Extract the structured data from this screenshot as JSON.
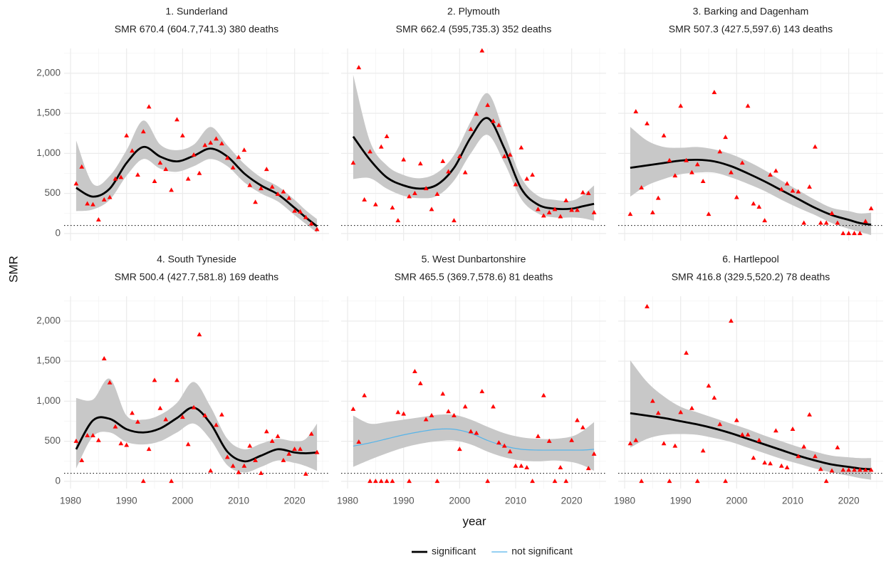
{
  "axes": {
    "x_label": "year",
    "y_label": "SMR",
    "xlim": [
      1978.85,
      2026.15
    ],
    "ylim": [
      -90,
      2310
    ],
    "xticks": [
      1980,
      1990,
      2000,
      2010,
      2020
    ],
    "yticks": [
      0,
      500,
      {
        "value": 1000,
        "label": "1,000"
      },
      {
        "value": 1500,
        "label": "1,500"
      },
      {
        "value": 2000,
        "label": "2,000"
      }
    ],
    "grid": true,
    "minor_grid": true,
    "reference_line": 100,
    "marker_color": "#ff0000",
    "band_color": "#c8c8c8",
    "legend_position": "bottom"
  },
  "chart_data": [
    {
      "type": "scatter",
      "title": "1. Sunderland",
      "subtitle": "SMR 670.4 (604.7,741.3) 380 deaths",
      "x": [
        1981,
        1982,
        1983,
        1984,
        1985,
        1986,
        1987,
        1988,
        1989,
        1990,
        1991,
        1992,
        1993,
        1994,
        1995,
        1996,
        1997,
        1998,
        1999,
        2000,
        2001,
        2002,
        2003,
        2004,
        2005,
        2006,
        2007,
        2008,
        2009,
        2010,
        2011,
        2012,
        2013,
        2014,
        2015,
        2016,
        2017,
        2018,
        2019,
        2020,
        2021,
        2022,
        2023,
        2024
      ],
      "values": [
        620,
        830,
        370,
        360,
        170,
        420,
        450,
        680,
        700,
        1220,
        1030,
        730,
        1270,
        1580,
        650,
        880,
        800,
        540,
        1420,
        1220,
        680,
        980,
        750,
        1100,
        1130,
        1180,
        1120,
        940,
        820,
        950,
        1040,
        600,
        390,
        560,
        800,
        580,
        490,
        520,
        440,
        280,
        270,
        200,
        120,
        50
      ],
      "fit": {
        "name": "significant",
        "color": "#000000",
        "bold": true,
        "x": [
          1981,
          1984,
          1987,
          1990,
          1993,
          1996,
          1999,
          2002,
          2005,
          2008,
          2011,
          2014,
          2017,
          2020,
          2022,
          2024
        ],
        "values": [
          570,
          460,
          560,
          880,
          1080,
          960,
          900,
          970,
          1060,
          960,
          750,
          600,
          490,
          320,
          200,
          90
        ],
        "lower": [
          280,
          300,
          420,
          720,
          930,
          810,
          770,
          840,
          930,
          840,
          640,
          500,
          400,
          230,
          120,
          10
        ],
        "upper": [
          1160,
          620,
          720,
          1040,
          1410,
          1110,
          1040,
          1110,
          1330,
          1100,
          870,
          700,
          590,
          420,
          290,
          180
        ]
      }
    },
    {
      "type": "scatter",
      "title": "2. Plymouth",
      "subtitle": "SMR 662.4 (595,735.3) 352 deaths",
      "x": [
        1981,
        1982,
        1983,
        1984,
        1985,
        1986,
        1987,
        1988,
        1989,
        1990,
        1991,
        1992,
        1993,
        1994,
        1995,
        1996,
        1997,
        1998,
        1999,
        2000,
        2001,
        2002,
        2003,
        2004,
        2005,
        2006,
        2007,
        2008,
        2009,
        2010,
        2011,
        2012,
        2013,
        2014,
        2015,
        2016,
        2017,
        2018,
        2019,
        2020,
        2021,
        2022,
        2023,
        2024
      ],
      "values": [
        880,
        2070,
        420,
        1020,
        360,
        1080,
        1210,
        320,
        160,
        920,
        460,
        500,
        870,
        560,
        300,
        490,
        900,
        770,
        160,
        960,
        760,
        1300,
        1490,
        2280,
        1600,
        1400,
        1350,
        960,
        980,
        610,
        1070,
        680,
        730,
        300,
        220,
        260,
        300,
        210,
        410,
        290,
        290,
        510,
        500,
        260
      ],
      "fit": {
        "name": "significant",
        "color": "#000000",
        "bold": true,
        "x": [
          1981,
          1984,
          1987,
          1990,
          1993,
          1996,
          1999,
          2002,
          2005,
          2008,
          2011,
          2014,
          2017,
          2020,
          2022,
          2024
        ],
        "values": [
          1210,
          920,
          700,
          600,
          560,
          610,
          820,
          1200,
          1440,
          1060,
          560,
          360,
          310,
          310,
          340,
          370
        ],
        "lower": [
          680,
          690,
          560,
          470,
          440,
          470,
          660,
          1000,
          1230,
          880,
          430,
          250,
          200,
          200,
          190,
          160
        ],
        "upper": [
          1980,
          1150,
          850,
          730,
          690,
          760,
          980,
          1400,
          1750,
          1250,
          700,
          470,
          420,
          410,
          480,
          600
        ]
      }
    },
    {
      "type": "scatter",
      "title": "3. Barking and Dagenham",
      "subtitle": "SMR 507.3 (427.5,597.6) 143 deaths",
      "x": [
        1981,
        1982,
        1983,
        1984,
        1985,
        1986,
        1987,
        1988,
        1989,
        1990,
        1991,
        1992,
        1993,
        1994,
        1995,
        1996,
        1997,
        1998,
        1999,
        2000,
        2001,
        2002,
        2003,
        2004,
        2005,
        2006,
        2007,
        2008,
        2009,
        2010,
        2011,
        2012,
        2013,
        2014,
        2015,
        2016,
        2017,
        2018,
        2019,
        2020,
        2021,
        2022,
        2023,
        2024
      ],
      "values": [
        240,
        1520,
        570,
        1370,
        260,
        440,
        1220,
        910,
        720,
        1590,
        910,
        760,
        860,
        650,
        240,
        1760,
        1020,
        1200,
        760,
        450,
        880,
        1590,
        370,
        330,
        160,
        730,
        780,
        550,
        620,
        530,
        520,
        130,
        580,
        1080,
        130,
        130,
        250,
        130,
        0,
        0,
        0,
        0,
        150,
        310
      ],
      "fit": {
        "name": "significant",
        "color": "#000000",
        "bold": true,
        "x": [
          1981,
          1984,
          1987,
          1990,
          1993,
          1996,
          1999,
          2002,
          2005,
          2008,
          2011,
          2014,
          2017,
          2020,
          2022,
          2024
        ],
        "values": [
          820,
          850,
          880,
          910,
          920,
          900,
          840,
          750,
          650,
          540,
          430,
          320,
          230,
          170,
          130,
          110
        ],
        "lower": [
          460,
          600,
          680,
          740,
          760,
          760,
          700,
          620,
          530,
          420,
          320,
          230,
          130,
          60,
          20,
          -20
        ],
        "upper": [
          1330,
          1160,
          1080,
          1070,
          1080,
          1050,
          990,
          900,
          790,
          660,
          540,
          420,
          320,
          280,
          250,
          260
        ]
      }
    },
    {
      "type": "scatter",
      "title": "4. South Tyneside",
      "subtitle": "SMR 500.4 (427.7,581.8) 169 deaths",
      "x": [
        1981,
        1982,
        1983,
        1984,
        1985,
        1986,
        1987,
        1988,
        1989,
        1990,
        1991,
        1992,
        1993,
        1994,
        1995,
        1996,
        1997,
        1998,
        1999,
        2000,
        2001,
        2002,
        2003,
        2004,
        2005,
        2006,
        2007,
        2008,
        2009,
        2010,
        2011,
        2012,
        2013,
        2014,
        2015,
        2016,
        2017,
        2018,
        2019,
        2020,
        2021,
        2022,
        2023,
        2024
      ],
      "values": [
        500,
        260,
        570,
        570,
        510,
        1530,
        1230,
        680,
        470,
        450,
        850,
        740,
        0,
        400,
        1260,
        910,
        770,
        0,
        1260,
        800,
        460,
        920,
        1830,
        820,
        130,
        700,
        830,
        300,
        190,
        110,
        190,
        440,
        260,
        100,
        620,
        500,
        560,
        260,
        340,
        400,
        400,
        90,
        590,
        360
      ],
      "fit": {
        "name": "significant",
        "color": "#000000",
        "bold": true,
        "x": [
          1981,
          1984,
          1987,
          1990,
          1993,
          1996,
          1999,
          2002,
          2005,
          2008,
          2011,
          2014,
          2017,
          2020,
          2022,
          2024
        ],
        "values": [
          400,
          760,
          780,
          650,
          610,
          660,
          790,
          920,
          720,
          370,
          250,
          320,
          400,
          360,
          350,
          360
        ],
        "lower": [
          160,
          560,
          610,
          490,
          460,
          500,
          610,
          720,
          520,
          200,
          110,
          180,
          260,
          230,
          190,
          130
        ],
        "upper": [
          1040,
          1020,
          1280,
          820,
          770,
          830,
          980,
          1240,
          930,
          530,
          400,
          470,
          530,
          500,
          530,
          720
        ]
      }
    },
    {
      "type": "scatter",
      "title": "5. West Dunbartonshire",
      "subtitle": "SMR 465.5 (369.7,578.6) 81 deaths",
      "x": [
        1981,
        1982,
        1983,
        1984,
        1985,
        1986,
        1987,
        1988,
        1989,
        1990,
        1991,
        1992,
        1993,
        1994,
        1995,
        1996,
        1997,
        1998,
        1999,
        2000,
        2001,
        2002,
        2003,
        2004,
        2005,
        2006,
        2007,
        2008,
        2009,
        2010,
        2011,
        2012,
        2013,
        2014,
        2015,
        2016,
        2017,
        2018,
        2019,
        2020,
        2021,
        2022,
        2023,
        2024
      ],
      "values": [
        900,
        490,
        1070,
        0,
        0,
        0,
        0,
        0,
        860,
        840,
        0,
        1370,
        1220,
        770,
        820,
        0,
        1090,
        870,
        820,
        400,
        930,
        620,
        600,
        1120,
        0,
        930,
        480,
        440,
        370,
        190,
        190,
        170,
        0,
        560,
        1070,
        500,
        0,
        170,
        0,
        510,
        760,
        670,
        160,
        340
      ],
      "fit": {
        "name": "not significant",
        "color": "#56b4e9",
        "bold": false,
        "x": [
          1981,
          1984,
          1987,
          1990,
          1993,
          1996,
          1999,
          2002,
          2005,
          2008,
          2011,
          2014,
          2017,
          2020,
          2022,
          2024
        ],
        "values": [
          440,
          480,
          530,
          580,
          620,
          650,
          650,
          600,
          510,
          440,
          400,
          390,
          390,
          390,
          390,
          400
        ],
        "lower": [
          180,
          270,
          350,
          420,
          470,
          500,
          510,
          460,
          370,
          300,
          260,
          250,
          260,
          240,
          200,
          130
        ],
        "upper": [
          820,
          720,
          740,
          770,
          800,
          830,
          830,
          770,
          680,
          600,
          550,
          530,
          530,
          560,
          630,
          740
        ]
      }
    },
    {
      "type": "scatter",
      "title": "6. Hartlepool",
      "subtitle": "SMR 416.8 (329.5,520.2) 78 deaths",
      "x": [
        1981,
        1982,
        1983,
        1984,
        1985,
        1986,
        1987,
        1988,
        1989,
        1990,
        1991,
        1992,
        1993,
        1994,
        1995,
        1996,
        1997,
        1998,
        1999,
        2000,
        2001,
        2002,
        2003,
        2004,
        2005,
        2006,
        2007,
        2008,
        2009,
        2010,
        2011,
        2012,
        2013,
        2014,
        2015,
        2016,
        2017,
        2018,
        2019,
        2020,
        2021,
        2022,
        2023,
        2024
      ],
      "values": [
        470,
        510,
        0,
        2180,
        1000,
        850,
        470,
        0,
        440,
        860,
        1600,
        910,
        0,
        380,
        1190,
        1040,
        710,
        0,
        2000,
        760,
        580,
        580,
        290,
        510,
        230,
        220,
        630,
        190,
        170,
        650,
        310,
        430,
        830,
        310,
        150,
        0,
        130,
        420,
        140,
        140,
        140,
        140,
        140,
        140
      ],
      "fit": {
        "name": "significant",
        "color": "#000000",
        "bold": true,
        "x": [
          1981,
          1984,
          1987,
          1990,
          1993,
          1996,
          1999,
          2002,
          2005,
          2008,
          2011,
          2014,
          2017,
          2020,
          2022,
          2024
        ],
        "values": [
          850,
          820,
          790,
          750,
          710,
          660,
          600,
          530,
          460,
          390,
          320,
          260,
          210,
          180,
          160,
          150
        ],
        "lower": [
          420,
          530,
          580,
          590,
          580,
          540,
          490,
          420,
          350,
          280,
          220,
          160,
          110,
          70,
          40,
          20
        ],
        "upper": [
          1510,
          1240,
          1060,
          930,
          860,
          790,
          720,
          650,
          570,
          500,
          430,
          370,
          320,
          300,
          290,
          290
        ]
      }
    }
  ]
}
